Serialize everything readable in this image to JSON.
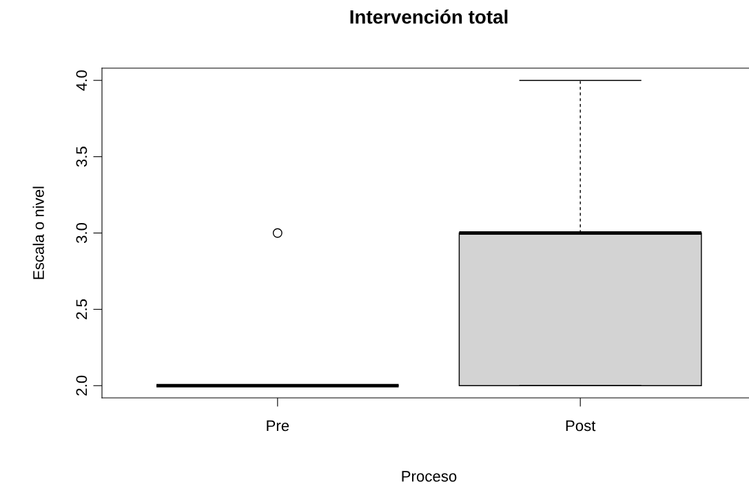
{
  "chart_data": {
    "type": "box",
    "title": "Intervención total",
    "xlabel": "Proceso",
    "ylabel": "Escala o nivel",
    "categories": [
      "Pre",
      "Post"
    ],
    "boxes": [
      {
        "low": 2,
        "q1": 2,
        "median": 2,
        "q3": 2,
        "high": 2,
        "outliers": [
          3
        ]
      },
      {
        "low": 2,
        "q1": 2,
        "median": 3,
        "q3": 3,
        "high": 4
      }
    ],
    "colors": [
      "#000000",
      "#d3d3d3"
    ],
    "ylim": [
      1.92,
      4.08
    ],
    "yticks": [
      {
        "value": 2,
        "label": "2.0"
      },
      {
        "value": 2.5,
        "label": "2.5"
      },
      {
        "value": 3,
        "label": "3.0"
      },
      {
        "value": 3.5,
        "label": "3.5"
      },
      {
        "value": 4,
        "label": "4.0"
      }
    ],
    "legend": false
  }
}
